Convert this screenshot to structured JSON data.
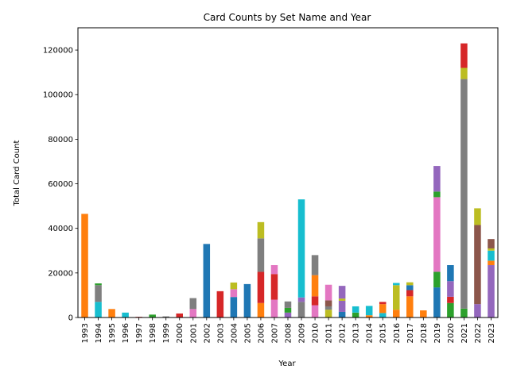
{
  "chart_data": {
    "type": "bar",
    "stacked": true,
    "title": "Card Counts by Set Name and Year",
    "xlabel": "Year",
    "ylabel": "Total Card Count",
    "ylim": [
      0,
      130000
    ],
    "yticks": [
      0,
      20000,
      40000,
      60000,
      80000,
      100000,
      120000
    ],
    "grid": false,
    "legend": "none",
    "categories": [
      "1993",
      "1994",
      "1995",
      "1996",
      "1997",
      "1998",
      "1999",
      "2000",
      "2001",
      "2002",
      "2003",
      "2004",
      "2005",
      "2006",
      "2007",
      "2008",
      "2009",
      "2010",
      "2011",
      "2012",
      "2013",
      "2014",
      "2015",
      "2016",
      "2017",
      "2018",
      "2019",
      "2020",
      "2021",
      "2022",
      "2023"
    ],
    "palette": [
      "#1f77b4",
      "#ff7f0e",
      "#2ca02c",
      "#d62728",
      "#9467bd",
      "#8c564b",
      "#e377c2",
      "#7f7f7f",
      "#bcbd22",
      "#17becf"
    ],
    "stacks": [
      [
        {
          "c": 1,
          "v": 46500
        }
      ],
      [
        {
          "c": 9,
          "v": 7000
        },
        {
          "c": 7,
          "v": 7500
        },
        {
          "c": 2,
          "v": 800
        }
      ],
      [
        {
          "c": 1,
          "v": 3800
        }
      ],
      [
        {
          "c": 9,
          "v": 2200
        }
      ],
      [
        {
          "c": 3,
          "v": 300
        }
      ],
      [
        {
          "c": 2,
          "v": 1300
        }
      ],
      [
        {
          "c": 7,
          "v": 500
        }
      ],
      [
        {
          "c": 3,
          "v": 1800
        }
      ],
      [
        {
          "c": 6,
          "v": 3800
        },
        {
          "c": 7,
          "v": 4900
        }
      ],
      [
        {
          "c": 0,
          "v": 33000
        }
      ],
      [
        {
          "c": 3,
          "v": 11800
        }
      ],
      [
        {
          "c": 0,
          "v": 9200
        },
        {
          "c": 6,
          "v": 3500
        },
        {
          "c": 8,
          "v": 3000
        }
      ],
      [
        {
          "c": 0,
          "v": 15000
        }
      ],
      [
        {
          "c": 1,
          "v": 6500
        },
        {
          "c": 3,
          "v": 14000
        },
        {
          "c": 7,
          "v": 15000
        },
        {
          "c": 8,
          "v": 7300
        }
      ],
      [
        {
          "c": 6,
          "v": 8000
        },
        {
          "c": 3,
          "v": 11500
        },
        {
          "c": 6,
          "v": 4000
        }
      ],
      [
        {
          "c": 4,
          "v": 2200
        },
        {
          "c": 2,
          "v": 2100
        },
        {
          "c": 7,
          "v": 2900
        }
      ],
      [
        {
          "c": 7,
          "v": 7000
        },
        {
          "c": 4,
          "v": 2000
        },
        {
          "c": 9,
          "v": 44000
        }
      ],
      [
        {
          "c": 6,
          "v": 5500
        },
        {
          "c": 3,
          "v": 4000
        },
        {
          "c": 1,
          "v": 9500
        },
        {
          "c": 7,
          "v": 9000
        }
      ],
      [
        {
          "c": 8,
          "v": 3500
        },
        {
          "c": 7,
          "v": 1500
        },
        {
          "c": 5,
          "v": 2700
        },
        {
          "c": 6,
          "v": 7000
        }
      ],
      [
        {
          "c": 0,
          "v": 2500
        },
        {
          "c": 4,
          "v": 5000
        },
        {
          "c": 8,
          "v": 1000
        },
        {
          "c": 4,
          "v": 5700
        }
      ],
      [
        {
          "c": 2,
          "v": 2200
        },
        {
          "c": 9,
          "v": 2800
        }
      ],
      [
        {
          "c": 1,
          "v": 1000
        },
        {
          "c": 9,
          "v": 4200
        }
      ],
      [
        {
          "c": 9,
          "v": 2000
        },
        {
          "c": 1,
          "v": 4000
        },
        {
          "c": 3,
          "v": 1000
        }
      ],
      [
        {
          "c": 1,
          "v": 3500
        },
        {
          "c": 8,
          "v": 11000
        },
        {
          "c": 9,
          "v": 1000
        }
      ],
      [
        {
          "c": 1,
          "v": 9500
        },
        {
          "c": 3,
          "v": 2800
        },
        {
          "c": 0,
          "v": 2200
        },
        {
          "c": 8,
          "v": 1300
        }
      ],
      [
        {
          "c": 1,
          "v": 3200
        }
      ],
      [
        {
          "c": 0,
          "v": 13500
        },
        {
          "c": 2,
          "v": 7000
        },
        {
          "c": 6,
          "v": 33500
        },
        {
          "c": 2,
          "v": 2500
        },
        {
          "c": 4,
          "v": 11500
        }
      ],
      [
        {
          "c": 2,
          "v": 6500
        },
        {
          "c": 3,
          "v": 2800
        },
        {
          "c": 4,
          "v": 7000
        },
        {
          "c": 0,
          "v": 7200
        }
      ],
      [
        {
          "c": 2,
          "v": 4000
        },
        {
          "c": 7,
          "v": 103000
        },
        {
          "c": 8,
          "v": 5000
        },
        {
          "c": 3,
          "v": 11000
        }
      ],
      [
        {
          "c": 4,
          "v": 6000
        },
        {
          "c": 5,
          "v": 35500
        },
        {
          "c": 8,
          "v": 7500
        }
      ],
      [
        {
          "c": 4,
          "v": 23500
        },
        {
          "c": 1,
          "v": 2000
        },
        {
          "c": 9,
          "v": 4500
        },
        {
          "c": 8,
          "v": 1000
        },
        {
          "c": 5,
          "v": 4200
        }
      ]
    ]
  }
}
